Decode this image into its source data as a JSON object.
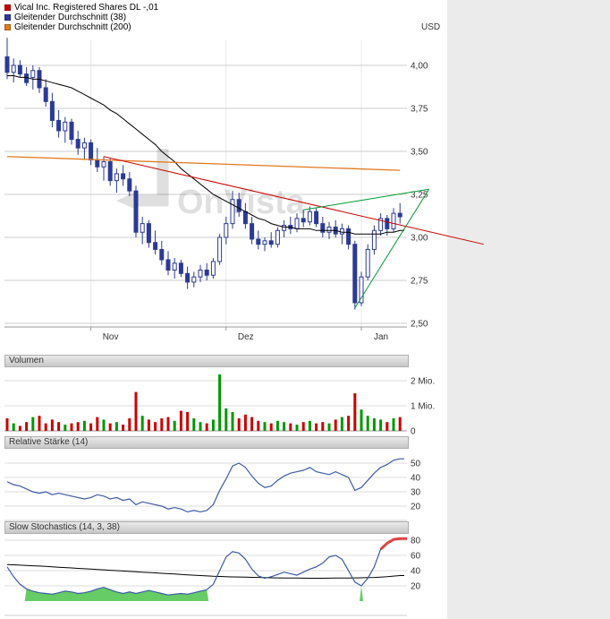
{
  "legend": {
    "currency_label": "USD",
    "items": [
      {
        "label": "Vical Inc. Registered Shares DL -,01",
        "color": "#cc0000"
      },
      {
        "label": "Gleitender Durchschnitt (38)",
        "color": "#2d3a96"
      },
      {
        "label": "Gleitender Durchschnitt (200)",
        "color": "#e07a1e"
      }
    ]
  },
  "panels": {
    "volume_title": "Volumen",
    "rsi_title": "Relative Stärke (14)",
    "stoch_title": "Slow Stochastics (14, 3, 38)"
  },
  "watermark_text": "OnVista",
  "chart_data": [
    {
      "type": "candlestick",
      "name": "Vical Inc. Registered Shares DL -,01",
      "unit": "USD",
      "ylim": [
        2.45,
        4.17
      ],
      "yticks": [
        4.0,
        3.75,
        3.5,
        3.25,
        3.0,
        2.75,
        2.5
      ],
      "ytick_labels": [
        "4,00",
        "3,75",
        "3,50",
        "3,25",
        "3,00",
        "2,75",
        "2,50"
      ],
      "month_ticks": [
        {
          "index": 13,
          "label": "Nov"
        },
        {
          "index": 34,
          "label": "Dez"
        },
        {
          "index": 55,
          "label": "Jan"
        }
      ],
      "candle_color": "#2b3a94",
      "candles": [
        [
          4.05,
          4.16,
          3.92,
          3.96
        ],
        [
          3.96,
          4.04,
          3.9,
          4.0
        ],
        [
          4.0,
          4.03,
          3.93,
          3.95
        ],
        [
          3.95,
          3.99,
          3.88,
          3.9
        ],
        [
          3.93,
          4.0,
          3.86,
          3.97
        ],
        [
          3.97,
          3.99,
          3.84,
          3.87
        ],
        [
          3.87,
          3.92,
          3.76,
          3.79
        ],
        [
          3.79,
          3.84,
          3.64,
          3.68
        ],
        [
          3.68,
          3.74,
          3.58,
          3.62
        ],
        [
          3.62,
          3.7,
          3.55,
          3.67
        ],
        [
          3.67,
          3.69,
          3.54,
          3.57
        ],
        [
          3.57,
          3.62,
          3.48,
          3.52
        ],
        [
          3.52,
          3.58,
          3.45,
          3.55
        ],
        [
          3.55,
          3.57,
          3.42,
          3.45
        ],
        [
          3.45,
          3.52,
          3.38,
          3.41
        ],
        [
          3.41,
          3.47,
          3.33,
          3.44
        ],
        [
          3.44,
          3.46,
          3.3,
          3.33
        ],
        [
          3.33,
          3.4,
          3.26,
          3.37
        ],
        [
          3.37,
          3.42,
          3.3,
          3.34
        ],
        [
          3.34,
          3.38,
          3.24,
          3.27
        ],
        [
          3.27,
          3.3,
          3.0,
          3.03
        ],
        [
          3.03,
          3.12,
          2.96,
          3.08
        ],
        [
          3.08,
          3.1,
          2.94,
          2.97
        ],
        [
          2.97,
          3.04,
          2.9,
          2.93
        ],
        [
          2.93,
          2.98,
          2.84,
          2.87
        ],
        [
          2.87,
          2.92,
          2.78,
          2.81
        ],
        [
          2.81,
          2.88,
          2.76,
          2.85
        ],
        [
          2.85,
          2.87,
          2.77,
          2.79
        ],
        [
          2.79,
          2.83,
          2.7,
          2.74
        ],
        [
          2.74,
          2.8,
          2.71,
          2.77
        ],
        [
          2.77,
          2.84,
          2.74,
          2.81
        ],
        [
          2.81,
          2.85,
          2.75,
          2.78
        ],
        [
          2.78,
          2.88,
          2.76,
          2.86
        ],
        [
          2.86,
          3.02,
          2.84,
          3.0
        ],
        [
          3.0,
          3.12,
          2.96,
          3.08
        ],
        [
          3.08,
          3.27,
          3.05,
          3.22
        ],
        [
          3.22,
          3.26,
          3.12,
          3.15
        ],
        [
          3.15,
          3.2,
          3.05,
          3.08
        ],
        [
          3.08,
          3.12,
          2.96,
          2.99
        ],
        [
          2.99,
          3.04,
          2.93,
          2.96
        ],
        [
          2.96,
          3.0,
          2.92,
          2.98
        ],
        [
          2.98,
          3.03,
          2.94,
          2.96
        ],
        [
          2.96,
          3.06,
          2.94,
          3.04
        ],
        [
          3.04,
          3.1,
          3.0,
          3.07
        ],
        [
          3.07,
          3.12,
          3.02,
          3.05
        ],
        [
          3.05,
          3.14,
          3.03,
          3.11
        ],
        [
          3.11,
          3.16,
          3.06,
          3.09
        ],
        [
          3.09,
          3.18,
          3.07,
          3.15
        ],
        [
          3.15,
          3.17,
          3.06,
          3.08
        ],
        [
          3.08,
          3.12,
          3.0,
          3.03
        ],
        [
          3.03,
          3.09,
          2.99,
          3.06
        ],
        [
          3.06,
          3.1,
          3.0,
          3.02
        ],
        [
          3.02,
          3.08,
          2.96,
          3.05
        ],
        [
          3.05,
          3.07,
          2.93,
          2.96
        ],
        [
          2.96,
          2.98,
          2.58,
          2.62
        ],
        [
          2.62,
          2.8,
          2.6,
          2.77
        ],
        [
          2.77,
          2.96,
          2.75,
          2.93
        ],
        [
          2.93,
          3.07,
          2.9,
          3.04
        ],
        [
          3.04,
          3.14,
          3.01,
          3.11
        ],
        [
          3.11,
          3.13,
          3.01,
          3.05
        ],
        [
          3.05,
          3.17,
          3.03,
          3.14
        ],
        [
          3.14,
          3.2,
          3.08,
          3.12
        ]
      ],
      "series": [
        {
          "name": "Gleitender Durchschnitt (38)",
          "color": "#000000",
          "values": [
            3.94,
            3.94,
            3.93,
            3.93,
            3.92,
            3.92,
            3.91,
            3.9,
            3.89,
            3.88,
            3.87,
            3.85,
            3.83,
            3.81,
            3.79,
            3.77,
            3.74,
            3.72,
            3.69,
            3.66,
            3.63,
            3.6,
            3.57,
            3.54,
            3.5,
            3.47,
            3.44,
            3.4,
            3.37,
            3.34,
            3.31,
            3.28,
            3.25,
            3.23,
            3.21,
            3.19,
            3.17,
            3.15,
            3.13,
            3.11,
            3.1,
            3.08,
            3.07,
            3.06,
            3.06,
            3.05,
            3.05,
            3.05,
            3.04,
            3.04,
            3.04,
            3.04,
            3.03,
            3.03,
            3.02,
            3.02,
            3.02,
            3.02,
            3.02,
            3.03,
            3.03,
            3.04
          ]
        }
      ],
      "trendlines": [
        {
          "name": "Gleitender Durchschnitt (200)",
          "color": "#e07a1e",
          "width": 1.3,
          "from": {
            "index": 0,
            "value": 3.47
          },
          "to": {
            "index": 61,
            "value": 3.39
          }
        },
        {
          "name": "Abwärtstrendlinie",
          "color": "#cc0000",
          "width": 1,
          "from": {
            "index": 15,
            "value": 3.47
          },
          "to": {
            "index": 74,
            "value": 2.96
          }
        },
        {
          "name": "Dreieck oben",
          "color": "#009933",
          "width": 1,
          "from": {
            "index": 46,
            "value": 3.16
          },
          "to": {
            "index": 65.5,
            "value": 3.28
          }
        },
        {
          "name": "Dreieck unten",
          "color": "#009933",
          "width": 1,
          "from": {
            "index": 54,
            "value": 2.59
          },
          "to": {
            "index": 65.5,
            "value": 3.28
          }
        }
      ]
    },
    {
      "type": "bar",
      "title": "Volumen",
      "unit": "Mio.",
      "yticks": [
        2,
        1,
        0
      ],
      "ytick_labels": [
        "2 Mio.",
        "1 Mio.",
        "0"
      ],
      "up_color": "#009900",
      "down_color": "#cc0000",
      "values": [
        0.5,
        0.3,
        0.2,
        0.35,
        0.55,
        0.6,
        0.3,
        0.45,
        0.35,
        0.25,
        0.3,
        0.35,
        0.4,
        0.3,
        0.55,
        0.45,
        0.3,
        0.35,
        0.25,
        0.5,
        1.55,
        0.6,
        0.45,
        0.35,
        0.5,
        0.55,
        0.4,
        0.8,
        0.75,
        0.5,
        0.35,
        0.3,
        0.45,
        2.25,
        0.9,
        0.75,
        0.5,
        0.65,
        0.55,
        0.4,
        0.35,
        0.3,
        0.4,
        0.35,
        0.3,
        0.25,
        0.35,
        0.4,
        0.3,
        0.35,
        0.3,
        0.45,
        0.55,
        0.6,
        1.5,
        0.85,
        0.6,
        0.5,
        0.45,
        0.35,
        0.5,
        0.55
      ]
    },
    {
      "type": "line",
      "title": "Relative Stärke (14)",
      "color": "#3b5ba5",
      "yticks": [
        50,
        40,
        30,
        20
      ],
      "ytick_labels": [
        "50",
        "40",
        "30",
        "20"
      ],
      "values": [
        37,
        35,
        34,
        32,
        30,
        29,
        30,
        28,
        29,
        28,
        27,
        26,
        25,
        26,
        28,
        27,
        25,
        26,
        24,
        25,
        21,
        23,
        22,
        21,
        20,
        18,
        19,
        18,
        16,
        17,
        16,
        17,
        21,
        31,
        39,
        48,
        50,
        47,
        41,
        36,
        33,
        34,
        38,
        41,
        43,
        44,
        45,
        47,
        44,
        43,
        42,
        44,
        42,
        40,
        31,
        33,
        38,
        43,
        47,
        49,
        52,
        53
      ]
    },
    {
      "type": "line",
      "title": "Slow Stochastics (14, 3, 38)",
      "yticks": [
        80,
        60,
        40,
        20
      ],
      "ytick_labels": [
        "80",
        "60",
        "40",
        "20"
      ],
      "series": [
        {
          "name": "Stochastik",
          "color": "#3b5ba5",
          "values": [
            45,
            32,
            22,
            16,
            13,
            11,
            10,
            9,
            11,
            13,
            12,
            10,
            11,
            13,
            16,
            18,
            15,
            12,
            10,
            12,
            10,
            12,
            14,
            12,
            10,
            8,
            9,
            10,
            9,
            11,
            13,
            15,
            22,
            40,
            58,
            65,
            63,
            55,
            42,
            33,
            30,
            32,
            35,
            38,
            36,
            34,
            38,
            42,
            45,
            50,
            58,
            60,
            55,
            40,
            25,
            20,
            30,
            45,
            68,
            76,
            81,
            82
          ]
        },
        {
          "name": "Signal (38)",
          "color": "#000000",
          "values": [
            48,
            47.6,
            47.2,
            46.8,
            46.4,
            46,
            45.5,
            45,
            44.5,
            44,
            43.5,
            43,
            42.5,
            42,
            41.5,
            41,
            40.5,
            40,
            39.5,
            39,
            38.5,
            38,
            37.5,
            37,
            36.5,
            36,
            35.5,
            35,
            34.5,
            34,
            33.5,
            33,
            32.6,
            32.3,
            32,
            31.8,
            31.6,
            31.4,
            31.2,
            31,
            30.8,
            30.6,
            30.5,
            30.4,
            30.3,
            30.2,
            30.1,
            30,
            30,
            30,
            30.1,
            30.2,
            30.3,
            30.4,
            30.5,
            30.6,
            30.8,
            31,
            31.5,
            32,
            32.8,
            33.5
          ]
        }
      ],
      "oversold": {
        "threshold": 20,
        "fill_color": "#66cc66"
      },
      "overbought": {
        "threshold": 75,
        "color": "#dd4444",
        "from_index": 58
      }
    }
  ]
}
